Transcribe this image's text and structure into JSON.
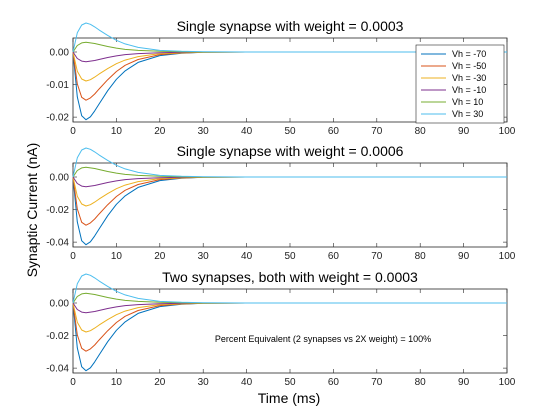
{
  "figure": {
    "ylabel": "Synaptic Current (nA)",
    "xlabel": "Time (ms)"
  },
  "chart_data": [
    {
      "type": "line",
      "title": "Single synapse with weight = 0.0003",
      "xlim": [
        0,
        100
      ],
      "ylim": [
        -0.0215,
        0.0043
      ],
      "xticks": [
        0,
        10,
        20,
        30,
        40,
        50,
        60,
        70,
        80,
        90,
        100
      ],
      "yticks": [
        -0.02,
        -0.01,
        0.0
      ],
      "ytick_labels": [
        "-0.02",
        "-0.01",
        "0.00"
      ],
      "legend": {
        "show": true,
        "location": "top-right"
      },
      "grid": false,
      "annotation": "",
      "series": [
        {
          "name": "Vh = -70",
          "color": "#0072BD",
          "x": [
            0,
            1,
            2,
            3,
            4,
            5,
            6,
            8,
            10,
            12,
            15,
            20,
            25,
            30,
            40,
            50,
            60,
            70,
            80,
            90,
            100
          ],
          "y": [
            0,
            -0.0138,
            -0.0196,
            -0.0208,
            -0.0199,
            -0.0181,
            -0.016,
            -0.0119,
            -0.0084,
            -0.0058,
            -0.0032,
            -0.0011,
            -0.0004,
            -0.0001,
            0,
            0,
            0,
            0,
            0,
            0,
            0
          ]
        },
        {
          "name": "Vh = -50",
          "color": "#D95319",
          "x": [
            0,
            1,
            2,
            3,
            4,
            5,
            6,
            8,
            10,
            12,
            15,
            20,
            25,
            30,
            40,
            50,
            60,
            70,
            80,
            90,
            100
          ],
          "y": [
            0,
            -0.0098,
            -0.0139,
            -0.0148,
            -0.0141,
            -0.0129,
            -0.0114,
            -0.0085,
            -0.006,
            -0.0041,
            -0.0023,
            -0.0008,
            -0.0003,
            -0.0001,
            0,
            0,
            0,
            0,
            0,
            0,
            0
          ]
        },
        {
          "name": "Vh = -30",
          "color": "#EDB120",
          "x": [
            0,
            1,
            2,
            3,
            4,
            5,
            6,
            8,
            10,
            12,
            15,
            20,
            25,
            30,
            40,
            50,
            60,
            70,
            80,
            90,
            100
          ],
          "y": [
            0,
            -0.0059,
            -0.0083,
            -0.0089,
            -0.0085,
            -0.0077,
            -0.0068,
            -0.0051,
            -0.0036,
            -0.0025,
            -0.0014,
            -0.0005,
            -0.0002,
            -0.0001,
            0,
            0,
            0,
            0,
            0,
            0,
            0
          ]
        },
        {
          "name": "Vh = -10",
          "color": "#7E2F8E",
          "x": [
            0,
            1,
            2,
            3,
            4,
            5,
            6,
            8,
            10,
            12,
            15,
            20,
            25,
            30,
            40,
            50,
            60,
            70,
            80,
            90,
            100
          ],
          "y": [
            0,
            -0.002,
            -0.0028,
            -0.003,
            -0.0028,
            -0.0026,
            -0.0023,
            -0.0017,
            -0.0012,
            -0.0008,
            -0.0005,
            -0.0002,
            -0.0001,
            0,
            0,
            0,
            0,
            0,
            0,
            0,
            0
          ]
        },
        {
          "name": "Vh = 10",
          "color": "#77AC30",
          "x": [
            0,
            1,
            2,
            3,
            4,
            5,
            6,
            8,
            10,
            12,
            15,
            20,
            25,
            30,
            40,
            50,
            60,
            70,
            80,
            90,
            100
          ],
          "y": [
            0,
            0.002,
            0.0028,
            0.003,
            0.0028,
            0.0026,
            0.0023,
            0.0017,
            0.0012,
            0.0008,
            0.0005,
            0.0002,
            0.0001,
            0,
            0,
            0,
            0,
            0,
            0,
            0,
            0
          ]
        },
        {
          "name": "Vh = 30",
          "color": "#4DBEEE",
          "x": [
            0,
            1,
            2,
            3,
            4,
            5,
            6,
            8,
            10,
            12,
            15,
            20,
            25,
            30,
            40,
            50,
            60,
            70,
            80,
            90,
            100
          ],
          "y": [
            0,
            0.0059,
            0.0083,
            0.0089,
            0.0085,
            0.0077,
            0.0068,
            0.0051,
            0.0036,
            0.0025,
            0.0014,
            0.0005,
            0.0002,
            0.0001,
            0,
            0,
            0,
            0,
            0,
            0,
            0
          ]
        }
      ]
    },
    {
      "type": "line",
      "title": "Single synapse with weight = 0.0006",
      "xlim": [
        0,
        100
      ],
      "ylim": [
        -0.043,
        0.0086
      ],
      "xticks": [
        0,
        10,
        20,
        30,
        40,
        50,
        60,
        70,
        80,
        90,
        100
      ],
      "yticks": [
        -0.04,
        -0.02,
        0.0
      ],
      "ytick_labels": [
        "-0.04",
        "-0.02",
        "0.00"
      ],
      "legend": {
        "show": false
      },
      "grid": false,
      "annotation": "",
      "series": [
        {
          "name": "Vh = -70",
          "color": "#0072BD",
          "x": [
            0,
            1,
            2,
            3,
            4,
            5,
            6,
            8,
            10,
            12,
            15,
            20,
            25,
            30,
            40,
            50,
            60,
            70,
            80,
            90,
            100
          ],
          "y": [
            0,
            -0.0276,
            -0.0392,
            -0.0416,
            -0.0398,
            -0.0362,
            -0.032,
            -0.0238,
            -0.0168,
            -0.0116,
            -0.0064,
            -0.0022,
            -0.0008,
            -0.0002,
            0,
            0,
            0,
            0,
            0,
            0,
            0
          ]
        },
        {
          "name": "Vh = -50",
          "color": "#D95319",
          "x": [
            0,
            1,
            2,
            3,
            4,
            5,
            6,
            8,
            10,
            12,
            15,
            20,
            25,
            30,
            40,
            50,
            60,
            70,
            80,
            90,
            100
          ],
          "y": [
            0,
            -0.0196,
            -0.0278,
            -0.0296,
            -0.0282,
            -0.0258,
            -0.0228,
            -0.017,
            -0.012,
            -0.0082,
            -0.0046,
            -0.0016,
            -0.0006,
            -0.0002,
            0,
            0,
            0,
            0,
            0,
            0,
            0
          ]
        },
        {
          "name": "Vh = -30",
          "color": "#EDB120",
          "x": [
            0,
            1,
            2,
            3,
            4,
            5,
            6,
            8,
            10,
            12,
            15,
            20,
            25,
            30,
            40,
            50,
            60,
            70,
            80,
            90,
            100
          ],
          "y": [
            0,
            -0.0118,
            -0.0166,
            -0.0178,
            -0.017,
            -0.0154,
            -0.0136,
            -0.0102,
            -0.0072,
            -0.005,
            -0.0028,
            -0.001,
            -0.0004,
            -0.0002,
            0,
            0,
            0,
            0,
            0,
            0,
            0
          ]
        },
        {
          "name": "Vh = -10",
          "color": "#7E2F8E",
          "x": [
            0,
            1,
            2,
            3,
            4,
            5,
            6,
            8,
            10,
            12,
            15,
            20,
            25,
            30,
            40,
            50,
            60,
            70,
            80,
            90,
            100
          ],
          "y": [
            0,
            -0.004,
            -0.0056,
            -0.006,
            -0.0056,
            -0.0052,
            -0.0046,
            -0.0034,
            -0.0024,
            -0.0016,
            -0.001,
            -0.0004,
            -0.0002,
            0,
            0,
            0,
            0,
            0,
            0,
            0,
            0
          ]
        },
        {
          "name": "Vh = 10",
          "color": "#77AC30",
          "x": [
            0,
            1,
            2,
            3,
            4,
            5,
            6,
            8,
            10,
            12,
            15,
            20,
            25,
            30,
            40,
            50,
            60,
            70,
            80,
            90,
            100
          ],
          "y": [
            0,
            0.004,
            0.0056,
            0.006,
            0.0056,
            0.0052,
            0.0046,
            0.0034,
            0.0024,
            0.0016,
            0.001,
            0.0004,
            0.0002,
            0,
            0,
            0,
            0,
            0,
            0,
            0,
            0
          ]
        },
        {
          "name": "Vh = 30",
          "color": "#4DBEEE",
          "x": [
            0,
            1,
            2,
            3,
            4,
            5,
            6,
            8,
            10,
            12,
            15,
            20,
            25,
            30,
            40,
            50,
            60,
            70,
            80,
            90,
            100
          ],
          "y": [
            0,
            0.0118,
            0.0166,
            0.0178,
            0.017,
            0.0154,
            0.0136,
            0.0102,
            0.0072,
            0.005,
            0.0028,
            0.001,
            0.0004,
            0.0002,
            0,
            0,
            0,
            0,
            0,
            0,
            0
          ]
        }
      ]
    },
    {
      "type": "line",
      "title": "Two synapses, both with weight = 0.0003",
      "xlim": [
        0,
        100
      ],
      "ylim": [
        -0.043,
        0.0086
      ],
      "xticks": [
        0,
        10,
        20,
        30,
        40,
        50,
        60,
        70,
        80,
        90,
        100
      ],
      "yticks": [
        -0.04,
        -0.02,
        0.0
      ],
      "ytick_labels": [
        "-0.04",
        "-0.02",
        "0.00"
      ],
      "legend": {
        "show": false
      },
      "grid": false,
      "annotation": "Percent Equivalent (2 synapses vs 2X weight) = 100%",
      "series": [
        {
          "name": "Vh = -70",
          "color": "#0072BD",
          "x": [
            0,
            1,
            2,
            3,
            4,
            5,
            6,
            8,
            10,
            12,
            15,
            20,
            25,
            30,
            40,
            50,
            60,
            70,
            80,
            90,
            100
          ],
          "y": [
            0,
            -0.0276,
            -0.0392,
            -0.0416,
            -0.0398,
            -0.0362,
            -0.032,
            -0.0238,
            -0.0168,
            -0.0116,
            -0.0064,
            -0.0022,
            -0.0008,
            -0.0002,
            0,
            0,
            0,
            0,
            0,
            0,
            0
          ]
        },
        {
          "name": "Vh = -50",
          "color": "#D95319",
          "x": [
            0,
            1,
            2,
            3,
            4,
            5,
            6,
            8,
            10,
            12,
            15,
            20,
            25,
            30,
            40,
            50,
            60,
            70,
            80,
            90,
            100
          ],
          "y": [
            0,
            -0.0196,
            -0.0278,
            -0.0296,
            -0.0282,
            -0.0258,
            -0.0228,
            -0.017,
            -0.012,
            -0.0082,
            -0.0046,
            -0.0016,
            -0.0006,
            -0.0002,
            0,
            0,
            0,
            0,
            0,
            0,
            0
          ]
        },
        {
          "name": "Vh = -30",
          "color": "#EDB120",
          "x": [
            0,
            1,
            2,
            3,
            4,
            5,
            6,
            8,
            10,
            12,
            15,
            20,
            25,
            30,
            40,
            50,
            60,
            70,
            80,
            90,
            100
          ],
          "y": [
            0,
            -0.0118,
            -0.0166,
            -0.0178,
            -0.017,
            -0.0154,
            -0.0136,
            -0.0102,
            -0.0072,
            -0.005,
            -0.0028,
            -0.001,
            -0.0004,
            -0.0002,
            0,
            0,
            0,
            0,
            0,
            0,
            0
          ]
        },
        {
          "name": "Vh = -10",
          "color": "#7E2F8E",
          "x": [
            0,
            1,
            2,
            3,
            4,
            5,
            6,
            8,
            10,
            12,
            15,
            20,
            25,
            30,
            40,
            50,
            60,
            70,
            80,
            90,
            100
          ],
          "y": [
            0,
            -0.004,
            -0.0056,
            -0.006,
            -0.0056,
            -0.0052,
            -0.0046,
            -0.0034,
            -0.0024,
            -0.0016,
            -0.001,
            -0.0004,
            -0.0002,
            0,
            0,
            0,
            0,
            0,
            0,
            0,
            0
          ]
        },
        {
          "name": "Vh = 10",
          "color": "#77AC30",
          "x": [
            0,
            1,
            2,
            3,
            4,
            5,
            6,
            8,
            10,
            12,
            15,
            20,
            25,
            30,
            40,
            50,
            60,
            70,
            80,
            90,
            100
          ],
          "y": [
            0,
            0.004,
            0.0056,
            0.006,
            0.0056,
            0.0052,
            0.0046,
            0.0034,
            0.0024,
            0.0016,
            0.001,
            0.0004,
            0.0002,
            0,
            0,
            0,
            0,
            0,
            0,
            0,
            0
          ]
        },
        {
          "name": "Vh = 30",
          "color": "#4DBEEE",
          "x": [
            0,
            1,
            2,
            3,
            4,
            5,
            6,
            8,
            10,
            12,
            15,
            20,
            25,
            30,
            40,
            50,
            60,
            70,
            80,
            90,
            100
          ],
          "y": [
            0,
            0.0118,
            0.0166,
            0.0178,
            0.017,
            0.0154,
            0.0136,
            0.0102,
            0.0072,
            0.005,
            0.0028,
            0.001,
            0.0004,
            0.0002,
            0,
            0,
            0,
            0,
            0,
            0,
            0
          ]
        }
      ]
    }
  ]
}
